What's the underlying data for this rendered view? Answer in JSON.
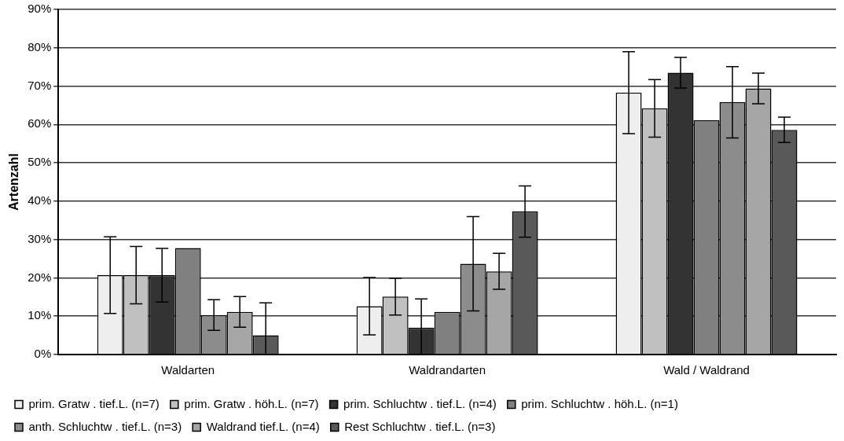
{
  "chart_data": {
    "type": "bar",
    "ylabel": "Artenzahl",
    "categories": [
      "Waldarten",
      "Waldrandarten",
      "Wald / Waldrand"
    ],
    "series": [
      {
        "name": "prim. Gratw . tief.L. (n=7)",
        "color": "#eeeeee",
        "values": [
          20.7,
          12.6,
          68.3
        ],
        "errors": [
          10,
          7.5,
          10.7
        ]
      },
      {
        "name": "prim. Gratw . höh.L. (n=7)",
        "color": "#c0c0c0",
        "values": [
          20.7,
          15.1,
          64.2
        ],
        "errors": [
          7.5,
          4.8,
          7.5
        ]
      },
      {
        "name": "prim. Schluchtw . tief.L. (n=4)",
        "color": "#333333",
        "values": [
          20.7,
          7.0,
          73.5
        ],
        "errors": [
          7,
          [
            0,
            14.5
          ],
          4
        ]
      },
      {
        "name": "prim. Schluchtw . höh.L. (n=1)",
        "color": "#808080",
        "values": [
          27.8,
          11.1,
          61.1
        ],
        "errors": [
          null,
          null,
          null
        ]
      },
      {
        "name": "anth. Schluchtw . tief.L. (n=3)",
        "color": "#8c8c8c",
        "values": [
          10.3,
          23.7,
          65.8
        ],
        "errors": [
          4,
          12.3,
          9.3
        ]
      },
      {
        "name": "Waldrand tief.L. (n=4)",
        "color": "#a6a6a6",
        "values": [
          11.1,
          21.7,
          69.4
        ],
        "errors": [
          4,
          4.7,
          4
        ]
      },
      {
        "name": "Rest Schluchtw . tief.L. (n=3)",
        "color": "#595959",
        "values": [
          5.0,
          37.3,
          58.6
        ],
        "errors": [
          [
            0,
            13.5
          ],
          6.7,
          3.3
        ]
      }
    ],
    "ylim": [
      0,
      90
    ],
    "yticks": [
      {
        "value": 0,
        "label": "0%"
      },
      {
        "value": 10,
        "label": "10%"
      },
      {
        "value": 20,
        "label": "20%"
      },
      {
        "value": 30,
        "label": "30%"
      },
      {
        "value": 40,
        "label": "40%"
      },
      {
        "value": 50,
        "label": "50%"
      },
      {
        "value": 60,
        "label": "60%"
      },
      {
        "value": 70,
        "label": "70%"
      },
      {
        "value": 80,
        "label": "80%"
      },
      {
        "value": 90,
        "label": "90%"
      }
    ],
    "grid": "y",
    "legend": "bottom"
  }
}
